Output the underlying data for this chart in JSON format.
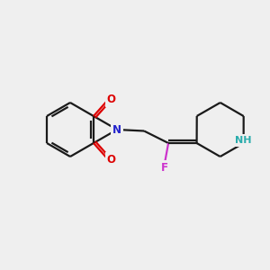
{
  "bg_color": "#efefef",
  "bond_color": "#1a1a1a",
  "N_color": "#2222cc",
  "O_color": "#dd0000",
  "F_color": "#cc33cc",
  "NH_N_color": "#2aacac",
  "NH_H_color": "#2aacac",
  "lw": 1.6,
  "dbo": 0.1,
  "fs": 8.5,
  "xlim": [
    0,
    10
  ],
  "ylim": [
    0,
    10
  ],
  "BL": 1.0
}
